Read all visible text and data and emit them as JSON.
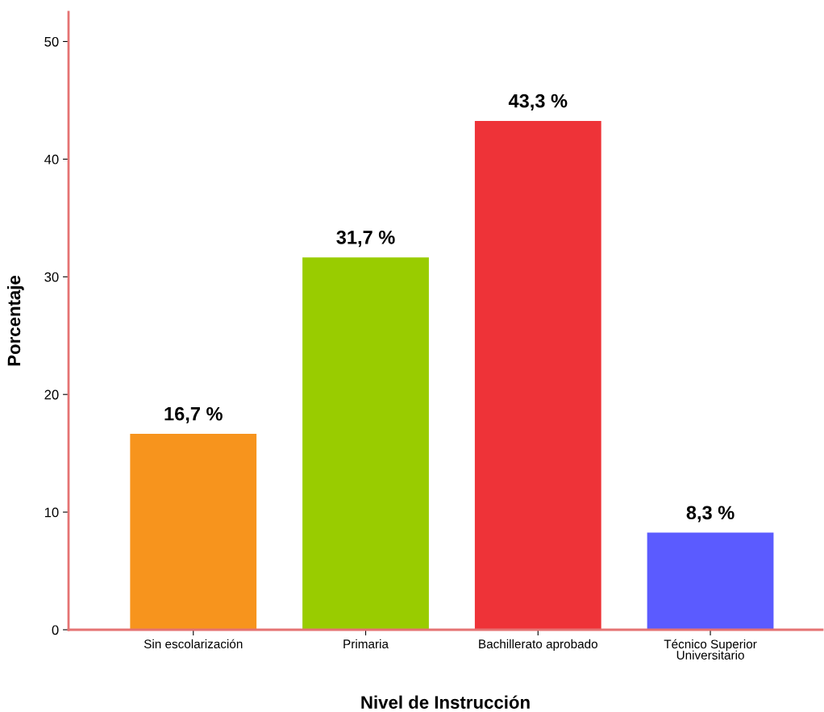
{
  "chart_data": {
    "type": "bar",
    "categories": [
      "Sin escolarización",
      "Primaria",
      "Bachillerato aprobado",
      "Técnico Superior\nUniversitario"
    ],
    "values": [
      16.7,
      31.7,
      43.3,
      8.3
    ],
    "colors": [
      "#f7941d",
      "#99cc00",
      "#ee3338",
      "#5b5bff"
    ],
    "value_labels": [
      "16,7 %",
      "31,7 %",
      "43,3 %",
      "8,3 %"
    ],
    "xlabel": "Nivel de Instrucción",
    "ylabel": "Porcentaje",
    "ylim": [
      0,
      52.5
    ],
    "yticks": [
      0,
      10,
      20,
      30,
      40,
      50
    ],
    "grid": false,
    "legend": false
  }
}
